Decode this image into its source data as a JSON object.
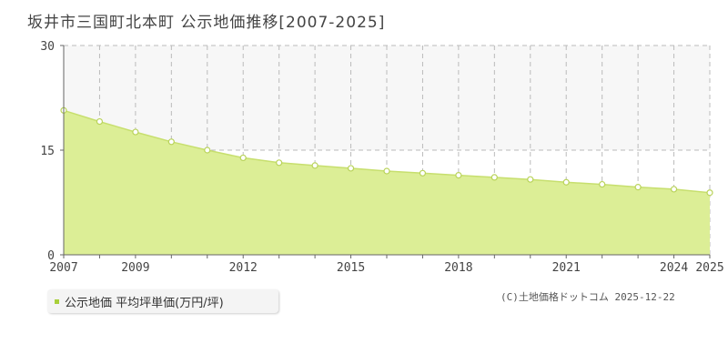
{
  "title": "坂井市三国町北本町 公示地価推移[2007-2025]",
  "legend": {
    "label": "公示地価 平均坪単価(万円/坪)"
  },
  "copyright": "(C)土地価格ドットコム 2025-12-22",
  "colors": {
    "fill": "#dcee96",
    "line": "#c7df6e",
    "point_border": "#b9d35a",
    "legend_marker": "#a8cf3a",
    "grid": "#bbbbbb",
    "axis": "#666666",
    "band": "#f7f7f7"
  },
  "chart_data": {
    "type": "area",
    "x": [
      2007,
      2008,
      2009,
      2010,
      2011,
      2012,
      2013,
      2014,
      2015,
      2016,
      2017,
      2018,
      2019,
      2020,
      2021,
      2022,
      2023,
      2024,
      2025
    ],
    "series": [
      {
        "name": "公示地価 平均坪単価(万円/坪)",
        "values": [
          20.7,
          19.1,
          17.6,
          16.2,
          15.0,
          13.9,
          13.2,
          12.8,
          12.4,
          12.0,
          11.7,
          11.4,
          11.1,
          10.8,
          10.4,
          10.1,
          9.7,
          9.4,
          8.9
        ]
      }
    ],
    "xticklabels": [
      "2007",
      "2009",
      "2012",
      "2015",
      "2018",
      "2021",
      "2024",
      "2025"
    ],
    "yticks": [
      0,
      15,
      30
    ],
    "ylim": [
      0,
      30
    ],
    "xlim": [
      2007,
      2025
    ],
    "grid": true
  }
}
